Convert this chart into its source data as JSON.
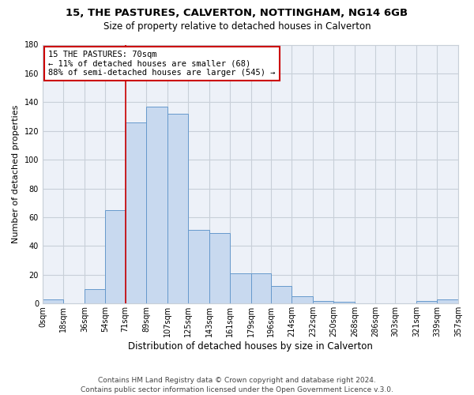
{
  "title": "15, THE PASTURES, CALVERTON, NOTTINGHAM, NG14 6GB",
  "subtitle": "Size of property relative to detached houses in Calverton",
  "xlabel": "Distribution of detached houses by size in Calverton",
  "ylabel": "Number of detached properties",
  "bar_color": "#c8d9ef",
  "bar_edge_color": "#6699cc",
  "grid_color": "#c8cfd8",
  "background_color": "#edf1f8",
  "bin_edges": [
    0,
    18,
    36,
    54,
    71,
    89,
    107,
    125,
    143,
    161,
    179,
    196,
    214,
    232,
    250,
    268,
    286,
    303,
    321,
    339,
    357
  ],
  "bar_heights": [
    3,
    0,
    10,
    65,
    126,
    137,
    132,
    51,
    49,
    21,
    21,
    12,
    5,
    2,
    1,
    0,
    0,
    0,
    2,
    3
  ],
  "tick_labels": [
    "0sqm",
    "18sqm",
    "36sqm",
    "54sqm",
    "71sqm",
    "89sqm",
    "107sqm",
    "125sqm",
    "143sqm",
    "161sqm",
    "179sqm",
    "196sqm",
    "214sqm",
    "232sqm",
    "250sqm",
    "268sqm",
    "286sqm",
    "303sqm",
    "321sqm",
    "339sqm",
    "357sqm"
  ],
  "property_line_x": 71,
  "property_line_color": "#cc0000",
  "annotation_line1": "15 THE PASTURES: 70sqm",
  "annotation_line2": "← 11% of detached houses are smaller (68)",
  "annotation_line3": "88% of semi-detached houses are larger (545) →",
  "annotation_box_color": "#cc0000",
  "ylim": [
    0,
    180
  ],
  "yticks": [
    0,
    20,
    40,
    60,
    80,
    100,
    120,
    140,
    160,
    180
  ],
  "footer_line1": "Contains HM Land Registry data © Crown copyright and database right 2024.",
  "footer_line2": "Contains public sector information licensed under the Open Government Licence v.3.0.",
  "title_fontsize": 9.5,
  "subtitle_fontsize": 8.5,
  "xlabel_fontsize": 8.5,
  "ylabel_fontsize": 8,
  "tick_fontsize": 7,
  "annotation_fontsize": 7.5,
  "footer_fontsize": 6.5
}
